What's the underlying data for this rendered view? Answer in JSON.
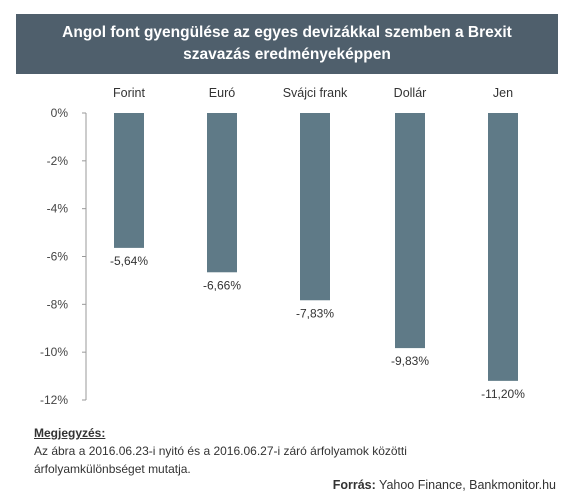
{
  "title": {
    "line1": "Angol font gyengülése az egyes  devizákkal szemben a Brexit",
    "line2": "szavazás eredményeképpen"
  },
  "chart_data": {
    "type": "bar",
    "orientation": "vertical",
    "categories": [
      "Forint",
      "Euró",
      "Svájci frank",
      "Dollár",
      "Jen"
    ],
    "values": [
      -5.64,
      -6.66,
      -7.83,
      -9.83,
      -11.2
    ],
    "value_labels": [
      "-5,64%",
      "-6,66%",
      "-7,83%",
      "-9,83%",
      "-11,20%"
    ],
    "category_axis_position": "top",
    "ylim": [
      -12,
      0
    ],
    "yticks": [
      0,
      -2,
      -4,
      -6,
      -8,
      -10,
      -12
    ],
    "ytick_labels": [
      "0%",
      "-2%",
      "-4%",
      "-6%",
      "-8%",
      "-10%",
      "-12%"
    ],
    "grid": false,
    "bar_color": "#5f7a87"
  },
  "note": {
    "title": "Megjegyzés:",
    "line1": "Az ábra  a 2016.06.23-i  nyitó és a 2016.06.27-i  záró árfolyamok közötti",
    "line2": "árfolyamkülönbséget  mutatja."
  },
  "source": {
    "label": "Forrás:",
    "text": " Yahoo Finance, Bankmonitor.hu"
  },
  "colors": {
    "header_bg": "#4f5f6c",
    "bar": "#5f7a87",
    "axis": "#999999"
  }
}
